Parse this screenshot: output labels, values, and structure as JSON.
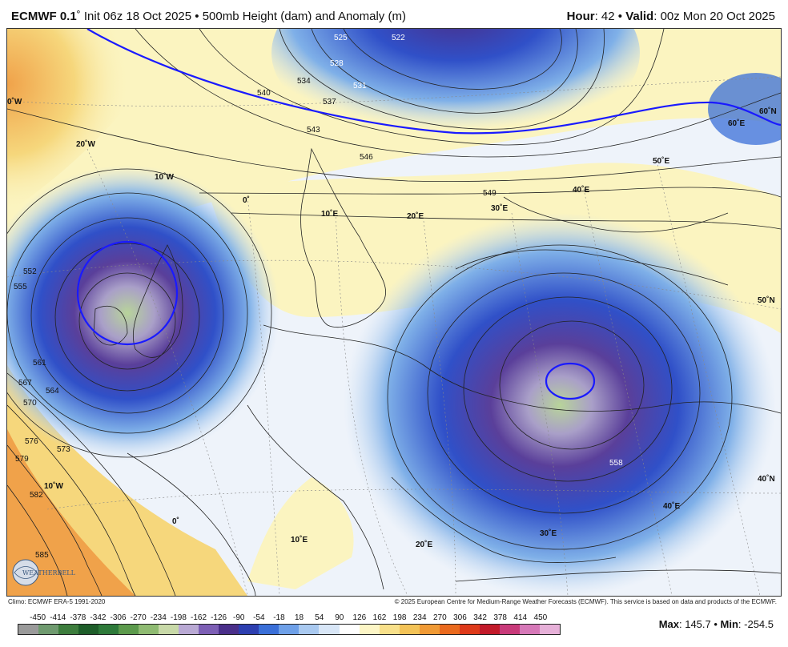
{
  "header": {
    "model": "ECMWF 0.1",
    "rest": "˚ Init 06z 18 Oct 2025 • 500mb Height (dam) and Anomaly (m)",
    "hour_label": "Hour",
    "hour_value": ": 42 • ",
    "valid_label": "Valid",
    "valid_value": ": 00z Mon 20 Oct 2025"
  },
  "map": {
    "contour_labels": [
      "522",
      "525",
      "528",
      "531",
      "534",
      "537",
      "540",
      "543",
      "546",
      "549",
      "552",
      "555",
      "558",
      "561",
      "564",
      "567",
      "570",
      "573",
      "576",
      "579",
      "582",
      "585"
    ],
    "geo_labels": [
      "0˚W",
      "20˚W",
      "10˚W",
      "0˚",
      "10˚E",
      "20˚E",
      "30˚E",
      "40˚E",
      "50˚E",
      "60˚E",
      "60˚N",
      "50˚N",
      "40˚N",
      "10˚W",
      "0˚",
      "10˚E",
      "20˚E",
      "30˚E",
      "40˚E"
    ],
    "colors": {
      "neg_deep": "#4a2f8a",
      "neg_mid": "#3050c8",
      "neg_light": "#7fb0e8",
      "neg_faint": "#c9ddf3",
      "pos_faint": "#fbf4c0",
      "pos_mid": "#f6d77c",
      "pos_strong": "#f0a24a",
      "center": "#b8d49a"
    }
  },
  "footer": {
    "climo": "Climo: ECMWF ERA-5 1991-2020",
    "copyright": "© 2025 European Centre for Medium-Range Weather Forecasts (ECMWF). This service is based on data and products of the ECMWF."
  },
  "colorbar": {
    "labels": [
      "-450",
      "-414",
      "-378",
      "-342",
      "-306",
      "-270",
      "-234",
      "-198",
      "-162",
      "-126",
      "-90",
      "-54",
      "-18",
      "18",
      "54",
      "90",
      "126",
      "162",
      "198",
      "234",
      "270",
      "306",
      "342",
      "378",
      "414",
      "450"
    ],
    "colors": [
      "#9a9a9a",
      "#6f9a6f",
      "#3d7d3d",
      "#1e5e2a",
      "#2e7a3a",
      "#5c9a4c",
      "#8fbb72",
      "#c8d9a8",
      "#b9a9d4",
      "#7d5fb5",
      "#4a2f8a",
      "#2d3fb0",
      "#3a6fd8",
      "#6ea0e8",
      "#a9c9f0",
      "#d8e6f7",
      "#ffffff",
      "#fdf6c6",
      "#f8e08a",
      "#f3c357",
      "#f09a35",
      "#ea6a1e",
      "#de3a1a",
      "#c21a2a",
      "#c83a7a",
      "#d678b8",
      "#e6b0d8"
    ]
  },
  "stats": {
    "max_label": "Max",
    "max_value": ": 145.7 • ",
    "min_label": "Min",
    "min_value": ": -254.5"
  },
  "logo": {
    "text": "WEATHERBELL"
  }
}
